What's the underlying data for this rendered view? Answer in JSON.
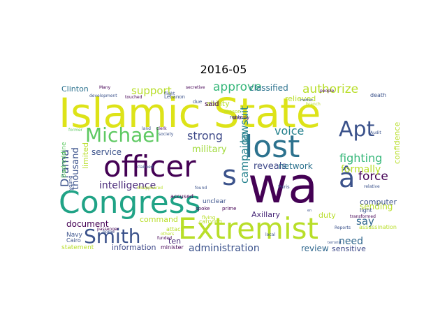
{
  "chart_data": {
    "type": "wordcloud",
    "title": "2016-05",
    "grid": false,
    "words": [
      {
        "text": "Islamic State",
        "color": "#dde318"
      },
      {
        "text": "wa",
        "color": "#440154"
      },
      {
        "text": "Congress",
        "color": "#20a386"
      },
      {
        "text": "Extremist",
        "color": "#b8de29"
      },
      {
        "text": "officer",
        "color": "#440154"
      },
      {
        "text": "lost",
        "color": "#2c728e"
      },
      {
        "text": "Smith",
        "color": "#3b528b"
      },
      {
        "text": "Michael",
        "color": "#5ec962"
      },
      {
        "text": "Apt",
        "color": "#3b528b"
      },
      {
        "text": "â",
        "color": "#3b528b"
      },
      {
        "text": "s",
        "color": "#3b528b"
      },
      {
        "text": "administration",
        "color": "#3b528b"
      },
      {
        "text": "intelligence",
        "color": "#482878"
      },
      {
        "text": "approve",
        "color": "#35b779"
      },
      {
        "text": "support",
        "color": "#b8de29"
      },
      {
        "text": "strong",
        "color": "#3e4989"
      },
      {
        "text": "force",
        "color": "#440154"
      },
      {
        "text": "fighting",
        "color": "#35b779"
      },
      {
        "text": "authorize",
        "color": "#b8de29"
      },
      {
        "text": "voice",
        "color": "#26828e"
      },
      {
        "text": "formally",
        "color": "#b8de29"
      },
      {
        "text": "Drama",
        "color": "#3b528b"
      },
      {
        "text": "need",
        "color": "#31688e"
      },
      {
        "text": "say",
        "color": "#31688e"
      },
      {
        "text": "military",
        "color": "#a0da39"
      },
      {
        "text": "campaign",
        "color": "#26828e"
      },
      {
        "text": "lawsuit",
        "color": "#26828e"
      },
      {
        "text": "thousand",
        "color": "#3b528b"
      },
      {
        "text": "limited",
        "color": "#b8de29"
      },
      {
        "text": "classified",
        "color": "#2c728e"
      },
      {
        "text": "document",
        "color": "#440154"
      },
      {
        "text": "review",
        "color": "#31688e"
      },
      {
        "text": "Axillary",
        "color": "#482878"
      },
      {
        "text": "reveals",
        "color": "#3e4989"
      },
      {
        "text": "network",
        "color": "#2c728e"
      },
      {
        "text": "sending",
        "color": "#b8de29"
      },
      {
        "text": "sensitive",
        "color": "#3e4989"
      },
      {
        "text": "information",
        "color": "#3e4989"
      },
      {
        "text": "ten",
        "color": "#482878"
      },
      {
        "text": "command",
        "color": "#b8de29"
      },
      {
        "text": "service",
        "color": "#3b528b"
      },
      {
        "text": "Clinton",
        "color": "#2c728e"
      },
      {
        "text": "ability",
        "color": "#b8de29"
      },
      {
        "text": "relieved",
        "color": "#b8de29"
      },
      {
        "text": "confidence",
        "color": "#b8de29"
      },
      {
        "text": "computer",
        "color": "#3b528b"
      },
      {
        "text": "duty",
        "color": "#b8de29"
      },
      {
        "text": "said",
        "color": "#440154"
      },
      {
        "text": "unclear",
        "color": "#3b528b"
      },
      {
        "text": "accused",
        "color": "#440154"
      },
      {
        "text": "statement",
        "color": "#b8de29"
      },
      {
        "text": "Navy",
        "color": "#3b528b"
      },
      {
        "text": "Cairo",
        "color": "#3b528b"
      },
      {
        "text": "Badreddine",
        "color": "#5ec962"
      },
      {
        "text": "Paris",
        "color": "#3b528b"
      },
      {
        "text": "light",
        "color": "#3b528b"
      },
      {
        "text": "assassination",
        "color": "#b8de29"
      },
      {
        "text": "attack",
        "color": "#b8de29"
      },
      {
        "text": "minister",
        "color": "#440154"
      },
      {
        "text": "carrying",
        "color": "#b8de29"
      },
      {
        "text": "prime",
        "color": "#440154"
      },
      {
        "text": "reason",
        "color": "#b8de29"
      },
      {
        "text": "route",
        "color": "#3b528b"
      },
      {
        "text": "shortly",
        "color": "#440154"
      },
      {
        "text": "due",
        "color": "#3b528b"
      },
      {
        "text": "land",
        "color": "#3b528b"
      },
      {
        "text": "clerk",
        "color": "#440154"
      },
      {
        "text": "society",
        "color": "#3b528b"
      },
      {
        "text": "secretive",
        "color": "#440154"
      },
      {
        "text": "Lebanon",
        "color": "#3b528b"
      },
      {
        "text": "touched",
        "color": "#440154"
      },
      {
        "text": "flight",
        "color": "#3b528b"
      },
      {
        "text": "Many",
        "color": "#440154"
      },
      {
        "text": "development",
        "color": "#3b528b"
      },
      {
        "text": "former",
        "color": "#5ec962"
      },
      {
        "text": "death",
        "color": "#3b528b"
      },
      {
        "text": "people",
        "color": "#440154"
      },
      {
        "text": "branch",
        "color": "#b8de29"
      },
      {
        "text": "Audit",
        "color": "#3b528b"
      },
      {
        "text": "claimed",
        "color": "#3b528b"
      },
      {
        "text": "young",
        "color": "#3b528b"
      },
      {
        "text": "disappeared",
        "color": "#b8de29"
      },
      {
        "text": "found",
        "color": "#3b528b"
      },
      {
        "text": "flying",
        "color": "#b8de29"
      },
      {
        "text": "spoke",
        "color": "#440154"
      },
      {
        "text": "passenger",
        "color": "#440154"
      },
      {
        "text": "home",
        "color": "#3b528b"
      },
      {
        "text": "others",
        "color": "#b8de29"
      },
      {
        "text": "funded",
        "color": "#440154"
      },
      {
        "text": "Reports",
        "color": "#3b528b"
      },
      {
        "text": "transformed",
        "color": "#440154"
      },
      {
        "text": "relative",
        "color": "#3b528b"
      },
      {
        "text": "terrorist",
        "color": "#3b528b"
      },
      {
        "text": "mother",
        "color": "#3b528b"
      },
      {
        "text": "local",
        "color": "#3b528b"
      },
      {
        "text": "en",
        "color": "#3b528b"
      },
      {
        "text": "man",
        "color": "#3b528b"
      }
    ]
  }
}
